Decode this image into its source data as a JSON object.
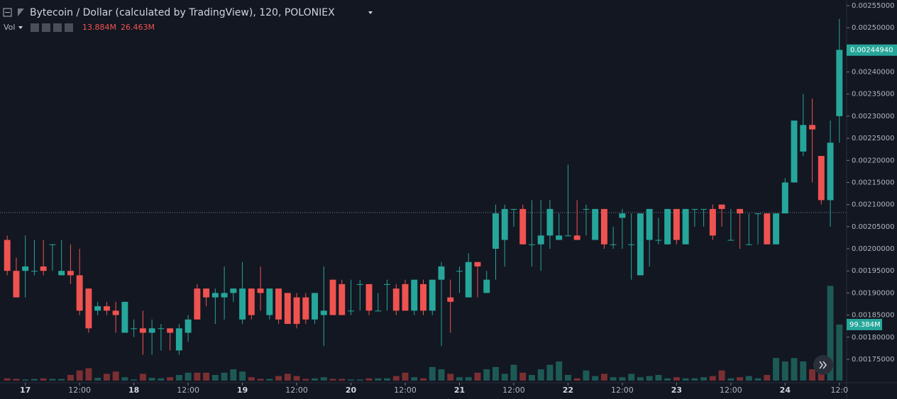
{
  "chart_data": {
    "type": "candlestick",
    "title": "Bytecoin / Dollar (calculated by TradingView), 120, POLONIEX",
    "volume_label": "Vol",
    "volume_legend": [
      "13.884M",
      "26.463M"
    ],
    "up_color": "#26a69a",
    "down_color": "#ef5350",
    "volume_up_color": "#1d5a56",
    "volume_down_color": "#7b2f33",
    "ohlc": [
      [
        0.00202,
        0.00203,
        0.00194,
        0.00195
      ],
      [
        0.00195,
        0.00198,
        0.00189,
        0.00189
      ],
      [
        0.00195,
        0.00203,
        0.00189,
        0.00196
      ],
      [
        0.00195,
        0.00202,
        0.00194,
        0.00195
      ],
      [
        0.00196,
        0.00202,
        0.00194,
        0.00195
      ],
      [
        0.00201,
        0.00201,
        0.00195,
        0.00201
      ],
      [
        0.00194,
        0.00202,
        0.00194,
        0.00195
      ],
      [
        0.00195,
        0.00201,
        0.00192,
        0.00194
      ],
      [
        0.00194,
        0.002,
        0.00185,
        0.00186
      ],
      [
        0.00191,
        0.00191,
        0.00181,
        0.00182
      ],
      [
        0.00186,
        0.00188,
        0.00185,
        0.00187
      ],
      [
        0.00187,
        0.00188,
        0.00185,
        0.00186
      ],
      [
        0.00186,
        0.00188,
        0.00181,
        0.00185
      ],
      [
        0.00181,
        0.00188,
        0.00181,
        0.00188
      ],
      [
        0.00182,
        0.00184,
        0.0018,
        0.00182
      ],
      [
        0.00182,
        0.00186,
        0.00176,
        0.00181
      ],
      [
        0.00181,
        0.00184,
        0.00176,
        0.00182
      ],
      [
        0.00182,
        0.00183,
        0.00177,
        0.00182
      ],
      [
        0.00182,
        0.00182,
        0.00177,
        0.00181
      ],
      [
        0.00177,
        0.00183,
        0.00176,
        0.00182
      ],
      [
        0.00181,
        0.00185,
        0.00179,
        0.00184
      ],
      [
        0.00191,
        0.00192,
        0.00184,
        0.00184
      ],
      [
        0.00191,
        0.00191,
        0.00187,
        0.00189
      ],
      [
        0.00189,
        0.00191,
        0.00183,
        0.0019
      ],
      [
        0.00189,
        0.00196,
        0.00184,
        0.0019
      ],
      [
        0.0019,
        0.00191,
        0.00188,
        0.00191
      ],
      [
        0.00184,
        0.00197,
        0.00183,
        0.00191
      ],
      [
        0.00191,
        0.00191,
        0.00184,
        0.00185
      ],
      [
        0.00191,
        0.00196,
        0.00186,
        0.0019
      ],
      [
        0.00185,
        0.00191,
        0.00184,
        0.00191
      ],
      [
        0.00191,
        0.00191,
        0.00183,
        0.00184
      ],
      [
        0.0019,
        0.0019,
        0.00183,
        0.00183
      ],
      [
        0.00189,
        0.0019,
        0.00182,
        0.00183
      ],
      [
        0.00189,
        0.0019,
        0.00183,
        0.00184
      ],
      [
        0.00184,
        0.0019,
        0.00183,
        0.0019
      ],
      [
        0.00185,
        0.00196,
        0.00178,
        0.00186
      ],
      [
        0.00193,
        0.00193,
        0.00185,
        0.00185
      ],
      [
        0.00192,
        0.00193,
        0.00185,
        0.00185
      ],
      [
        0.00186,
        0.00193,
        0.00185,
        0.00186
      ],
      [
        0.00192,
        0.00193,
        0.00186,
        0.00192
      ],
      [
        0.00192,
        0.00192,
        0.00185,
        0.00186
      ],
      [
        0.00186,
        0.0019,
        0.00186,
        0.00186
      ],
      [
        0.00192,
        0.00193,
        0.00186,
        0.00192
      ],
      [
        0.00191,
        0.00192,
        0.00185,
        0.00186
      ],
      [
        0.00192,
        0.00193,
        0.00186,
        0.00186
      ],
      [
        0.00186,
        0.00193,
        0.00185,
        0.00193
      ],
      [
        0.00192,
        0.00193,
        0.00185,
        0.00186
      ],
      [
        0.00186,
        0.00193,
        0.00185,
        0.00193
      ],
      [
        0.00193,
        0.00197,
        0.00178,
        0.00196
      ],
      [
        0.00189,
        0.00193,
        0.00181,
        0.00188
      ],
      [
        0.00195,
        0.00196,
        0.0019,
        0.00195
      ],
      [
        0.00189,
        0.00199,
        0.00189,
        0.00197
      ],
      [
        0.00197,
        0.00197,
        0.00189,
        0.00196
      ],
      [
        0.0019,
        0.00195,
        0.0019,
        0.00193
      ],
      [
        0.002,
        0.0021,
        0.00193,
        0.00208
      ],
      [
        0.00202,
        0.0021,
        0.00196,
        0.00209
      ],
      [
        0.00209,
        0.00209,
        0.00205,
        0.00209
      ],
      [
        0.00209,
        0.0021,
        0.00201,
        0.00201
      ],
      [
        0.00201,
        0.00211,
        0.00196,
        0.00201
      ],
      [
        0.00201,
        0.00211,
        0.00195,
        0.00203
      ],
      [
        0.00203,
        0.00211,
        0.002,
        0.00209
      ],
      [
        0.00202,
        0.00208,
        0.00202,
        0.00203
      ],
      [
        0.00203,
        0.00219,
        0.00203,
        0.00203
      ],
      [
        0.00203,
        0.00211,
        0.00202,
        0.00202
      ],
      [
        0.00209,
        0.0021,
        0.00203,
        0.00209
      ],
      [
        0.00202,
        0.00209,
        0.00202,
        0.00209
      ],
      [
        0.00209,
        0.00209,
        0.002,
        0.00201
      ],
      [
        0.00201,
        0.00205,
        0.002,
        0.00201
      ],
      [
        0.00207,
        0.00209,
        0.002,
        0.00208
      ],
      [
        0.00201,
        0.00208,
        0.00193,
        0.00201
      ],
      [
        0.00194,
        0.00208,
        0.00194,
        0.00208
      ],
      [
        0.00202,
        0.00209,
        0.00196,
        0.00209
      ],
      [
        0.00202,
        0.00207,
        0.00201,
        0.00202
      ],
      [
        0.00201,
        0.00209,
        0.00201,
        0.00209
      ],
      [
        0.00209,
        0.00209,
        0.00201,
        0.00202
      ],
      [
        0.00201,
        0.00209,
        0.00201,
        0.00209
      ],
      [
        0.00209,
        0.00209,
        0.00205,
        0.00209
      ],
      [
        0.00209,
        0.00209,
        0.00205,
        0.00209
      ],
      [
        0.00209,
        0.0021,
        0.00202,
        0.00203
      ],
      [
        0.0021,
        0.0021,
        0.00205,
        0.00209
      ],
      [
        0.00202,
        0.00209,
        0.00202,
        0.00202
      ],
      [
        0.00209,
        0.00209,
        0.002,
        0.00208
      ],
      [
        0.00201,
        0.00208,
        0.00201,
        0.00201
      ],
      [
        0.00208,
        0.00208,
        0.00201,
        0.00208
      ],
      [
        0.00208,
        0.00208,
        0.00201,
        0.00201
      ],
      [
        0.00201,
        0.00208,
        0.00201,
        0.00208
      ],
      [
        0.00208,
        0.00216,
        0.00208,
        0.00215
      ],
      [
        0.00215,
        0.00229,
        0.00215,
        0.00229
      ],
      [
        0.00222,
        0.00235,
        0.00221,
        0.00228
      ],
      [
        0.00228,
        0.00234,
        0.00215,
        0.00227
      ],
      [
        0.00221,
        0.00221,
        0.0021,
        0.00211
      ],
      [
        0.00211,
        0.00229,
        0.00205,
        0.00224
      ],
      [
        0.0023,
        0.00252,
        0.00224,
        0.00245
      ]
    ],
    "volumes": [
      4,
      3,
      2,
      3,
      4,
      3,
      3,
      10,
      18,
      22,
      5,
      12,
      16,
      6,
      2,
      12,
      5,
      4,
      6,
      10,
      14,
      14,
      14,
      10,
      14,
      20,
      16,
      6,
      3,
      3,
      8,
      12,
      8,
      3,
      4,
      6,
      3,
      3,
      2,
      2,
      4,
      4,
      4,
      8,
      14,
      6,
      4,
      24,
      20,
      12,
      6,
      6,
      14,
      20,
      24,
      12,
      28,
      14,
      10,
      20,
      28,
      34,
      10,
      4,
      18,
      8,
      12,
      6,
      6,
      12,
      6,
      8,
      10,
      4,
      6,
      4,
      4,
      6,
      8,
      18,
      4,
      6,
      8,
      4,
      10,
      40,
      34,
      40,
      34,
      20,
      38,
      168,
      99.384
    ],
    "xlim": [
      -0.8,
      92.8
    ],
    "xticks": [
      {
        "value": 2,
        "label": "17"
      },
      {
        "value": 8,
        "label": "12:00"
      },
      {
        "value": 14,
        "label": "18"
      },
      {
        "value": 20,
        "label": "12:00"
      },
      {
        "value": 26,
        "label": "19"
      },
      {
        "value": 32,
        "label": "12:00"
      },
      {
        "value": 38,
        "label": "20"
      },
      {
        "value": 44,
        "label": "12:00"
      },
      {
        "value": 50,
        "label": "21"
      },
      {
        "value": 56,
        "label": "12:00"
      },
      {
        "value": 62,
        "label": "22"
      },
      {
        "value": 68,
        "label": "12:00"
      },
      {
        "value": 74,
        "label": "23"
      },
      {
        "value": 80,
        "label": "12:00"
      },
      {
        "value": 86,
        "label": "24"
      },
      {
        "value": 92,
        "label": "12:0"
      }
    ],
    "ylim": [
      0.001697,
      0.0025628
    ],
    "yticks": [
      {
        "value": 0.00255,
        "label": "0.00255000"
      },
      {
        "value": 0.0025,
        "label": "0.00250000"
      },
      {
        "value": 0.00245,
        "label": "0.00245000"
      },
      {
        "value": 0.0024,
        "label": "0.00240000"
      },
      {
        "value": 0.00235,
        "label": "0.00235000"
      },
      {
        "value": 0.0023,
        "label": "0.00230000"
      },
      {
        "value": 0.00225,
        "label": "0.00225000"
      },
      {
        "value": 0.0022,
        "label": "0.00220000"
      },
      {
        "value": 0.00215,
        "label": "0.00215000"
      },
      {
        "value": 0.0021,
        "label": "0.00210000"
      },
      {
        "value": 0.00205,
        "label": "0.00205000"
      },
      {
        "value": 0.002,
        "label": "0.00200000"
      },
      {
        "value": 0.00195,
        "label": "0.00195000"
      },
      {
        "value": 0.0019,
        "label": "0.00190000"
      },
      {
        "value": 0.00185,
        "label": "0.00185000"
      },
      {
        "value": 0.0018,
        "label": "0.00180000"
      },
      {
        "value": 0.00175,
        "label": "0.00175000"
      }
    ],
    "volume_lim": [
      0,
      675
    ],
    "reference_line": 0.002082,
    "last_price": {
      "value": 0.0024494,
      "label": "0.00244940"
    },
    "last_volume": {
      "value": 99.384,
      "label": "99.384M"
    }
  }
}
